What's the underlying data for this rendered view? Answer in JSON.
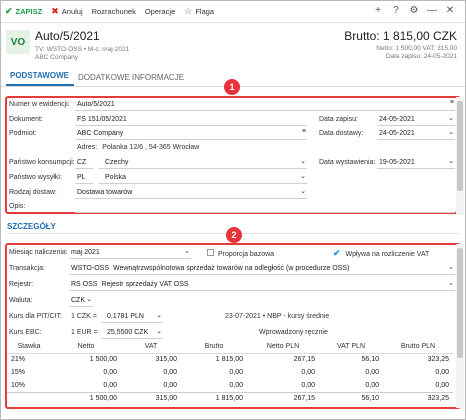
{
  "toolbar": {
    "save": "ZAPISZ",
    "cancel": "Anuluj",
    "settlement": "Rozrachunek",
    "operations": "Operacje",
    "flag": "Flaga"
  },
  "header": {
    "badge": "VO",
    "title": "Auto/5/2021",
    "sub_line1": "TV: WSTO-OSS  •  M-c: maj-2021",
    "sub_line2": "ABC Company",
    "brutto": "Brutto: 1 815,00 CZK",
    "netto_vat": "Netto: 1 500,00 VAT: 315,00",
    "data_zapisu": "Data zapisu: 24-05-2021"
  },
  "tabs": [
    {
      "label": "PODSTAWOWE"
    },
    {
      "label": "DODATKOWE INFORMACJE"
    }
  ],
  "callouts": {
    "one": "1",
    "two": "2"
  },
  "basic": {
    "numer_label": "Numer w ewidencji:",
    "numer_value": "Auto/5/2021",
    "dokument_label": "Dokument:",
    "dokument_value": "FS 151/05/2021",
    "podmiot_label": "Podmiot:",
    "podmiot_value": "ABC Company",
    "adres_label": "Adres:",
    "adres_value": "Polanka  12/6 , 54-365 Wrocław",
    "data_zapisu_label": "Data zapisu:",
    "data_zapisu_value": "24-05-2021",
    "data_dostawy_label": "Data dostawy:",
    "data_dostawy_value": "24-05-2021",
    "data_wyst_label": "Data wystawienia:",
    "data_wyst_value": "19-05-2021",
    "panstwo_kons_label": "Państwo konsumpcji:",
    "panstwo_kons_code": "CZ",
    "panstwo_kons_name": "Czechy",
    "panstwo_wys_label": "Państwo wysyłki:",
    "panstwo_wys_code": "PL",
    "panstwo_wys_name": "Polska",
    "rodzaj_label": "Rodzaj dostaw:",
    "rodzaj_value": "Dostawa towarów",
    "opis_label": "Opis:",
    "opis_value": ""
  },
  "details": {
    "section_title": "SZCZEGÓŁY",
    "miesiac_label": "Miesiąc naliczenia:",
    "miesiac_value": "maj 2021",
    "proporcja_label": "Proporcja bazowa",
    "wplywa_label": "Wpływa na rozliczenie VAT",
    "transakcja_label": "Transakcja:",
    "transakcja_code": "WSTO-OSS",
    "transakcja_name": "Wewnątrzwspólnotowa sprzedaż towarów na odległość (w procedurze OSS)",
    "rejestr_label": "Rejestr:",
    "rejestr_code": "RS OSS",
    "rejestr_name": "Rejestr sprzedaży VAT OSS",
    "waluta_label": "Waluta:",
    "waluta_value": "CZK",
    "kurs_pit_label": "Kurs dla PIT/CIT:",
    "kurs_pit_left": "1 CZK =",
    "kurs_pit_value": "0,1781 PLN",
    "kurs_pit_info": "23-07-2021 • NBP - kursy średnie",
    "kurs_ebc_label": "Kurs EBC:",
    "kurs_ebc_left": "1 EUR =",
    "kurs_ebc_value": "25,5500 CZK",
    "kurs_ebc_info": "Wprowadzony ręcznie"
  },
  "vat_table": {
    "headers": [
      "Stawka",
      "Netto",
      "VAT",
      "Brutto",
      "Netto PLN",
      "VAT PLN",
      "Brutto PLN"
    ],
    "rows": [
      [
        "21%",
        "1 500,00",
        "315,00",
        "1 815,00",
        "267,15",
        "56,10",
        "323,25"
      ],
      [
        "15%",
        "0,00",
        "0,00",
        "0,00",
        "0,00",
        "0,00",
        "0,00"
      ],
      [
        "10%",
        "0,00",
        "0,00",
        "0,00",
        "0,00",
        "0,00",
        "0,00"
      ]
    ],
    "total": [
      "",
      "1 500,00",
      "315,00",
      "1 815,00",
      "267,15",
      "56,10",
      "323,25"
    ]
  },
  "icons": {
    "save": "check-icon",
    "cancel": "x-icon",
    "flag": "star-icon"
  },
  "colors": {
    "accent": "#1f6fb2",
    "save": "#1f9b4a",
    "callout": "#e8333a"
  }
}
